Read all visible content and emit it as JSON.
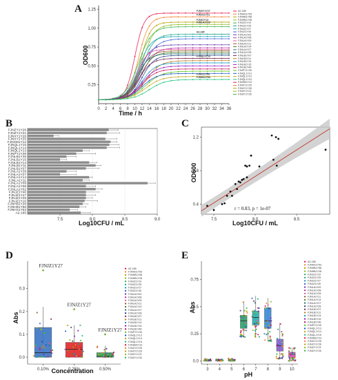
{
  "panels": {
    "a": "A",
    "b": "B",
    "c": "C",
    "d": "D",
    "e": "E"
  },
  "strains": [
    "A2-185",
    "FJNHS1Y53",
    "FJNHB1Y58",
    "FJNHB1Y28",
    "FJNJZ1Y10",
    "FJNJZ1Y25",
    "FJNJZ1Y27",
    "FJNJZ1Y40",
    "FJNLA1Y02",
    "FJNLA1Y08",
    "FJNLA1Y09",
    "FJNLA1Y11",
    "FJNLA1Y14",
    "FJNLA1Y27",
    "FJNLA1Y28",
    "FJNLB1Y07",
    "FJNLB1Y11",
    "FJNLB1Y14",
    "FJNLB1Y15",
    "FJNLB1Y46",
    "FJNPY1Y39",
    "FJNQL1Y13",
    "FJNQL1Y14",
    "FJNQL1Y15",
    "FJNSM1Y12",
    "FJNXY1Y25",
    "FJNXY1Y26",
    "FJNZY1Y21",
    "FJNZY1Y26"
  ],
  "chart_data": [
    {
      "id": "A",
      "type": "line",
      "xlabel": "Time / h",
      "ylabel": "OD600",
      "xlim": [
        0,
        36
      ],
      "ylim": [
        0,
        1.3
      ],
      "x_ticks": [
        0,
        2,
        4,
        6,
        8,
        10,
        12,
        14,
        16,
        18,
        20,
        22,
        24,
        26,
        28,
        30,
        32,
        34,
        36
      ],
      "y_ticks": [
        0.25,
        0.5,
        0.75,
        1.0,
        1.25
      ],
      "curve_labels": [
        "FJNXY1Y27",
        "FJNJZ1Y21",
        "FJNZ1Y14",
        "FJNLA1Y29",
        "A2-185",
        "FJNQL1Y10",
        "FJNJZ1Y40",
        "FJNHS1Y53"
      ],
      "series": [
        {
          "label": "FJNXY1Y27",
          "plateau": 1.2,
          "mid": 10,
          "k": 0.8
        },
        {
          "label": "FJNJZ1Y21",
          "plateau": 1.15,
          "mid": 11,
          "k": 0.7
        },
        {
          "label": "FJNZ1Y14",
          "plateau": 1.08,
          "mid": 11.5,
          "k": 0.7
        },
        {
          "label": "FJNLA1Y29",
          "plateau": 1.05,
          "mid": 12,
          "k": 0.6
        },
        {
          "plateau": 1.02,
          "mid": 11,
          "k": 0.55
        },
        {
          "label": "A2-185",
          "plateau": 0.92,
          "mid": 12,
          "k": 0.6
        },
        {
          "plateau": 0.89,
          "mid": 11,
          "k": 0.6
        },
        {
          "plateau": 0.86,
          "mid": 12,
          "k": 0.5
        },
        {
          "plateau": 0.78,
          "mid": 11,
          "k": 0.6
        },
        {
          "plateau": 0.74,
          "mid": 12,
          "k": 0.55
        },
        {
          "plateau": 0.72,
          "mid": 10.5,
          "k": 0.7
        },
        {
          "plateau": 0.7,
          "mid": 11,
          "k": 0.6
        },
        {
          "plateau": 0.68,
          "mid": 11.5,
          "k": 0.6
        },
        {
          "plateau": 0.66,
          "mid": 10.5,
          "k": 0.6
        },
        {
          "plateau": 0.64,
          "mid": 12,
          "k": 0.6
        },
        {
          "label": "FJNQL1Y10",
          "plateau": 0.6,
          "mid": 11,
          "k": 0.55
        },
        {
          "plateau": 0.57,
          "mid": 13,
          "k": 0.5
        },
        {
          "plateau": 0.54,
          "mid": 12,
          "k": 0.55
        },
        {
          "plateau": 0.5,
          "mid": 12,
          "k": 0.5
        },
        {
          "plateau": 0.46,
          "mid": 12,
          "k": 0.5
        },
        {
          "plateau": 0.43,
          "mid": 13,
          "k": 0.45
        },
        {
          "plateau": 0.4,
          "mid": 12,
          "k": 0.5
        },
        {
          "label": "FJNJZ1Y40",
          "plateau": 0.36,
          "mid": 13,
          "k": 0.45
        },
        {
          "label": "FJNHS1Y53",
          "plateau": 0.32,
          "mid": 14,
          "k": 0.45
        }
      ]
    },
    {
      "id": "B",
      "type": "bar",
      "orientation": "horizontal",
      "xlabel": "Log10CFU / mL",
      "xlim": [
        7.0,
        9.0
      ],
      "x_ticks": [
        7.5,
        8.0,
        8.5,
        9.0
      ],
      "categories": [
        "FJNZY1Y26",
        "FJNZY1Y21",
        "FJNXY1Y26",
        "FJNXY1Y25",
        "FJNSM1Y12",
        "FJNQL1Y15",
        "FJNQL1Y14",
        "FJNQL1Y13",
        "FJNPY1Y39",
        "FJNLB1Y46",
        "FJNLB1Y15",
        "FJNLB1Y14",
        "FJNLB1Y11",
        "FJNLB1Y07",
        "FJNLA1Y28",
        "FJNLA1Y27",
        "FJNLA1Y14",
        "FJNLA1Y11",
        "FJNLA1Y09",
        "FJNLA1Y08",
        "FJNLA1Y02",
        "FJNJZ1Y40",
        "FJNJZ1Y27",
        "FJNJZ1Y25",
        "FJNJZ1Y10",
        "FJNHB1Y28",
        "FJNHB1Y58",
        "FJNHS1Y53",
        "A2-185"
      ],
      "values": [
        8.25,
        8.22,
        7.4,
        8.2,
        8.28,
        8.26,
        8.22,
        7.85,
        7.75,
        7.6,
        7.5,
        7.95,
        8.05,
        7.9,
        7.6,
        7.5,
        7.95,
        7.85,
        8.85,
        7.9,
        8.05,
        7.9,
        7.9,
        7.9,
        7.88,
        7.85,
        7.8,
        7.65,
        7.82
      ],
      "errors": [
        0.15,
        0.2,
        0.08,
        0.18,
        0.1,
        0.15,
        0.2,
        0.1,
        0.3,
        0.15,
        0.1,
        0.12,
        0.08,
        0.2,
        0.15,
        0.25,
        0.05,
        0.1,
        0.12,
        0.15,
        0.1,
        0.2,
        0.15,
        0.1,
        0.2,
        0.08,
        0.1,
        0.12,
        0.15
      ]
    },
    {
      "id": "C",
      "type": "scatter",
      "xlabel": "Log10CFU / mL",
      "ylabel": "OD600",
      "xlim": [
        7.35,
        8.9
      ],
      "ylim": [
        0.28,
        1.32
      ],
      "x_ticks": [
        7.5,
        8.0,
        8.5
      ],
      "y_ticks": [
        0.4,
        0.8,
        1.2
      ],
      "annotation": "r = 0.83, p = 1e-07",
      "fit": {
        "x": [
          7.35,
          8.9
        ],
        "y": [
          0.32,
          1.3
        ]
      },
      "x": [
        7.42,
        7.5,
        7.6,
        7.63,
        7.66,
        7.7,
        7.72,
        7.76,
        7.78,
        7.8,
        7.82,
        7.84,
        7.86,
        7.88,
        7.9,
        7.9,
        7.93,
        7.95,
        8.05,
        8.2,
        8.22,
        8.25,
        8.26,
        8.28,
        8.85
      ],
      "y": [
        0.38,
        0.33,
        0.4,
        0.41,
        0.5,
        0.55,
        0.5,
        0.64,
        0.58,
        0.67,
        0.66,
        0.69,
        0.7,
        0.86,
        0.85,
        0.72,
        0.86,
        0.98,
        0.85,
        1.22,
        0.93,
        1.2,
        0.86,
        1.18,
        1.05
      ]
    },
    {
      "id": "D",
      "type": "box",
      "xlabel": "Concentration",
      "ylabel": "Abs",
      "categories": [
        "0.10%",
        "0.25%",
        "0.50%"
      ],
      "colors": [
        "#3a74c4",
        "#e02828",
        "#3aa14d"
      ],
      "ylim": [
        -0.03,
        0.42
      ],
      "y_ticks": [
        0.0,
        0.1,
        0.2,
        0.3
      ],
      "boxes": [
        {
          "q1": 0.0,
          "median": 0.02,
          "q3": 0.13,
          "whisker_low": 0.0,
          "whisker_high": 0.22
        },
        {
          "q1": 0.0,
          "median": 0.035,
          "q3": 0.065,
          "whisker_low": 0.0,
          "whisker_high": 0.14
        },
        {
          "q1": 0.0,
          "median": 0.005,
          "q3": 0.02,
          "whisker_low": 0.0,
          "whisker_high": 0.05
        }
      ],
      "outlier_labels": [
        {
          "category": "0.10%",
          "text": "FJNJZ1Y27",
          "y": 0.38
        },
        {
          "category": "0.25%",
          "text": "FJNJZ1Y27",
          "y": 0.21
        },
        {
          "category": "0.50%",
          "text": "FJNJZ1Y27",
          "y": 0.1
        }
      ]
    },
    {
      "id": "E",
      "type": "box",
      "xlabel": "pH",
      "ylabel": "Abs",
      "categories": [
        "3",
        "4",
        "5",
        "6",
        "7",
        "8",
        "9",
        "10"
      ],
      "colors": [
        "#d94c3a",
        "#b08a2a",
        "#6ba32a",
        "#2aa36b",
        "#2ab0b0",
        "#3a8ad9",
        "#8a5ad9",
        "#d94cc0"
      ],
      "ylim": [
        -0.03,
        0.92
      ],
      "y_ticks": [
        0.0,
        0.25,
        0.5,
        0.75
      ],
      "boxes": [
        {
          "q1": 0.005,
          "median": 0.01,
          "q3": 0.015,
          "whisker_low": 0.0,
          "whisker_high": 0.02
        },
        {
          "q1": 0.005,
          "median": 0.008,
          "q3": 0.012,
          "whisker_low": 0.0,
          "whisker_high": 0.015
        },
        {
          "q1": 0.005,
          "median": 0.01,
          "q3": 0.015,
          "whisker_low": 0.0,
          "whisker_high": 0.025
        },
        {
          "q1": 0.3,
          "median": 0.37,
          "q3": 0.42,
          "whisker_low": 0.22,
          "whisker_high": 0.55
        },
        {
          "q1": 0.33,
          "median": 0.4,
          "q3": 0.46,
          "whisker_low": 0.22,
          "whisker_high": 0.6
        },
        {
          "q1": 0.3,
          "median": 0.37,
          "q3": 0.49,
          "whisker_low": 0.18,
          "whisker_high": 0.58
        },
        {
          "q1": 0.09,
          "median": 0.14,
          "q3": 0.2,
          "whisker_low": 0.02,
          "whisker_high": 0.35
        },
        {
          "q1": 0.03,
          "median": 0.06,
          "q3": 0.08,
          "whisker_low": 0.0,
          "whisker_high": 0.12
        }
      ]
    }
  ]
}
